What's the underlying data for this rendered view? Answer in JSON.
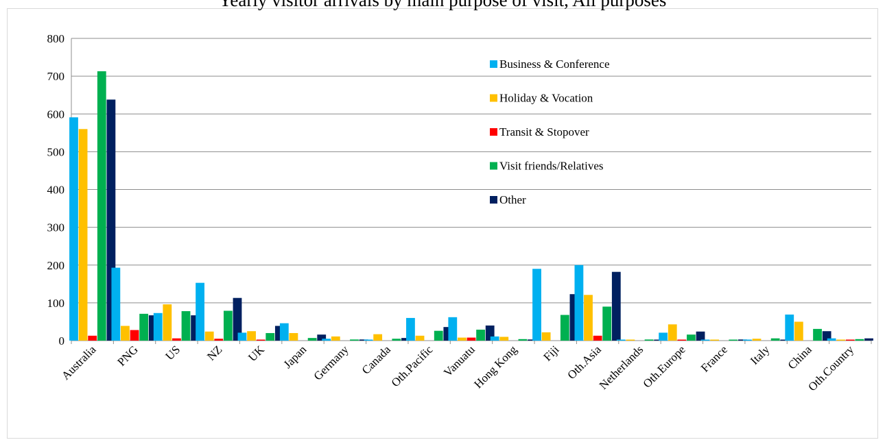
{
  "chart_data": {
    "type": "bar",
    "title": "Yearly visitor arrivals by main purpose of visit, All purposes",
    "categories": [
      "Australia",
      "PNG",
      "US",
      "NZ",
      "UK",
      "Japan",
      "Germany",
      "Canada",
      "Oth.Pacific",
      "Vanuatu",
      "Hong Kong",
      "Fiji",
      "Oth.Asia",
      "Netherlands",
      "Oth.Europe",
      "France",
      "Italy",
      "China",
      "Oth.Country"
    ],
    "ylim": [
      0,
      800
    ],
    "yticks": [
      "0",
      "100",
      "200",
      "300",
      "400",
      "500",
      "600",
      "700",
      "800"
    ],
    "grid": true,
    "legend_position": "upper-right inside plot",
    "series": [
      {
        "name": "Business & Conference",
        "color": "#00b0f0",
        "values": [
          591,
          193,
          73,
          153,
          21,
          46,
          5,
          2,
          60,
          62,
          11,
          190,
          200,
          1,
          21,
          2,
          1,
          69,
          6
        ]
      },
      {
        "name": "Holiday & Vocation",
        "color": "#ffc000",
        "values": [
          560,
          39,
          96,
          24,
          25,
          20,
          11,
          17,
          13,
          8,
          10,
          22,
          121,
          1,
          43,
          2,
          5,
          50,
          1
        ]
      },
      {
        "name": "Transit & Stopover",
        "color": "#ff0000",
        "values": [
          13,
          28,
          6,
          5,
          2,
          0,
          0,
          0,
          0,
          8,
          0,
          0,
          13,
          0,
          2,
          0,
          0,
          0,
          1
        ]
      },
      {
        "name": "Visit friends/Relatives",
        "color": "#00b050",
        "values": [
          713,
          71,
          78,
          79,
          20,
          7,
          3,
          5,
          26,
          29,
          4,
          68,
          90,
          3,
          16,
          1,
          6,
          31,
          4
        ]
      },
      {
        "name": "Other",
        "color": "#002060",
        "values": [
          638,
          67,
          67,
          113,
          39,
          16,
          3,
          7,
          36,
          40,
          3,
          123,
          182,
          2,
          24,
          3,
          1,
          25,
          6
        ]
      }
    ]
  }
}
